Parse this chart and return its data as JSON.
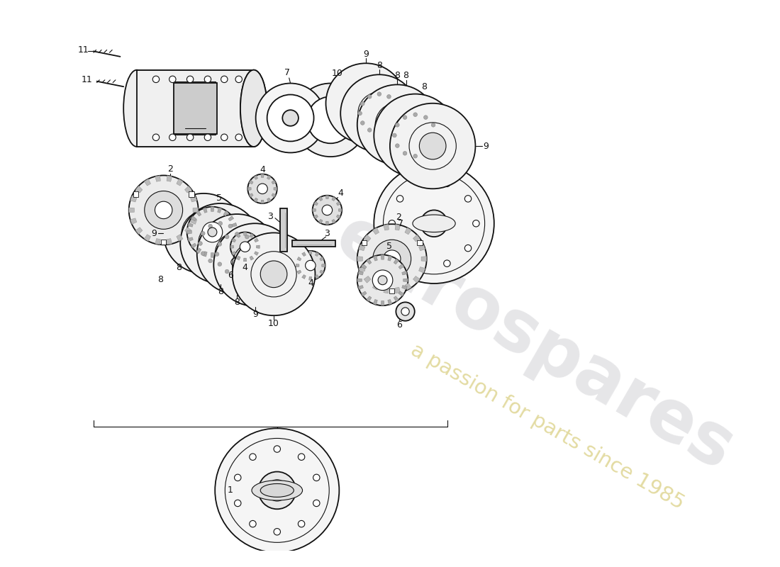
{
  "bg": "#ffffff",
  "lc": "#111111",
  "wm1": "eurospares",
  "wm2": "a passion for parts since 1985",
  "wm1_color": "#c8c8cc",
  "wm2_color": "#d4c870",
  "fig_w": 11.0,
  "fig_h": 8.0,
  "dpi": 100
}
